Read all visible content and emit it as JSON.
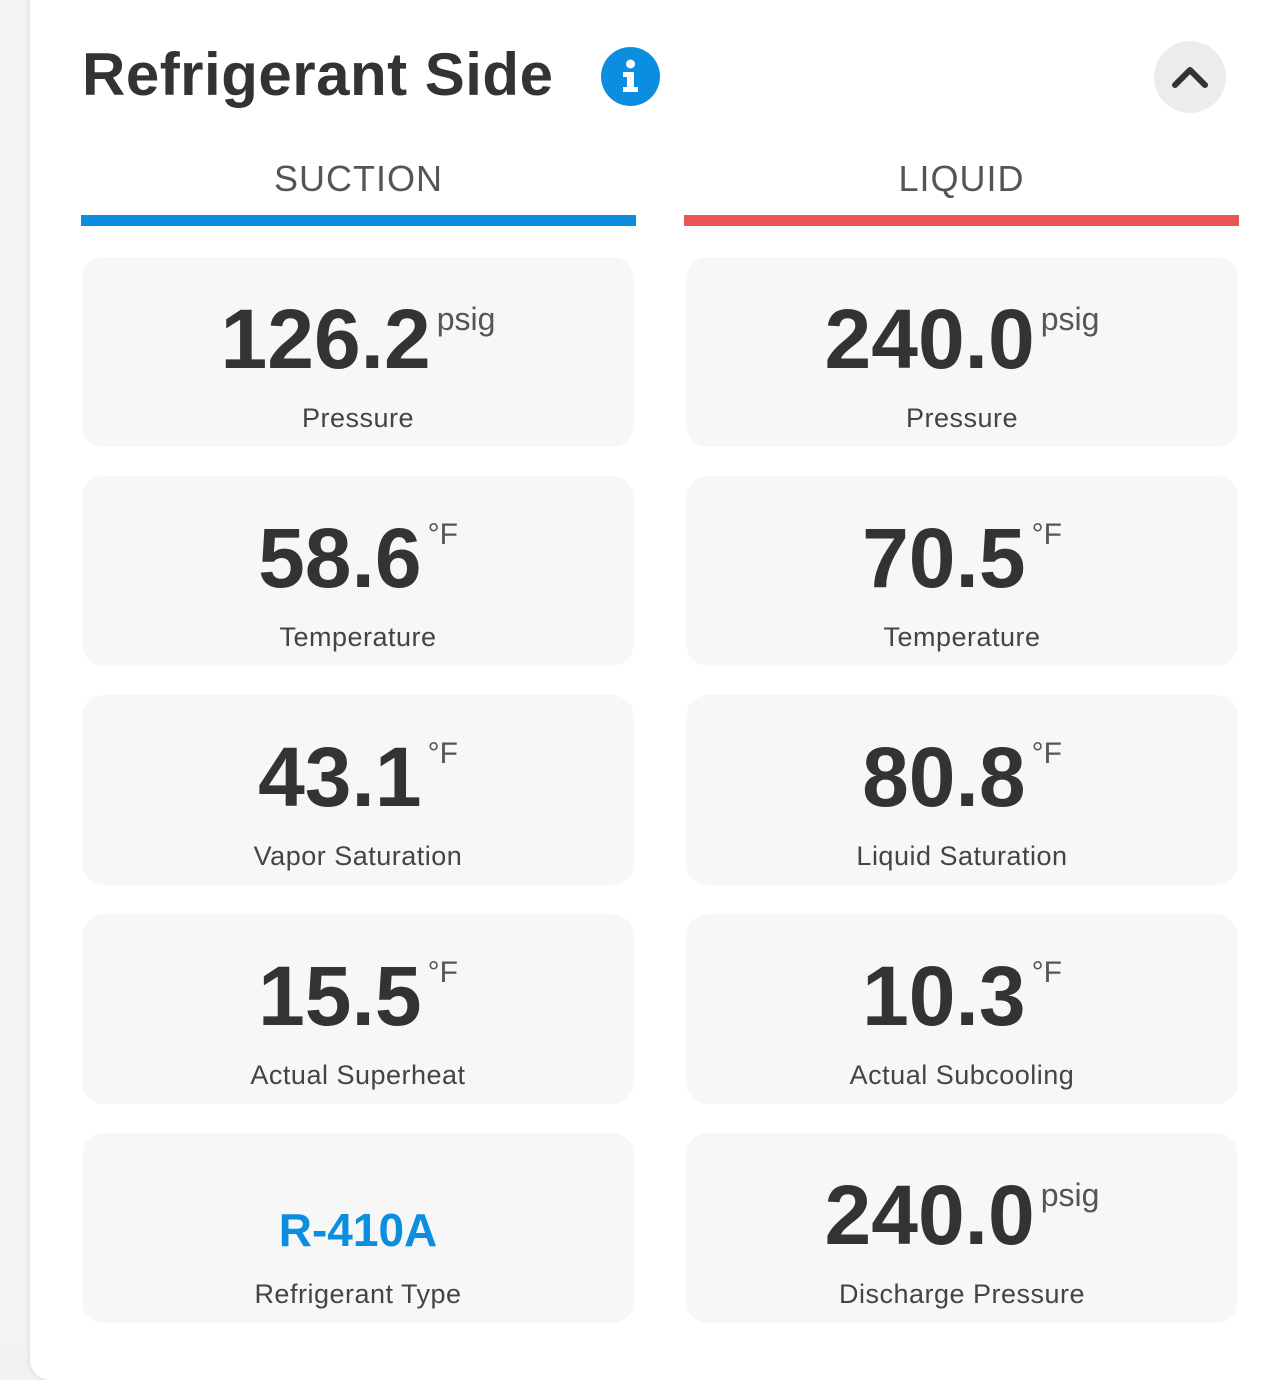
{
  "header": {
    "title": "Refrigerant Side"
  },
  "columns": {
    "suction": {
      "label": "SUCTION",
      "color": "#0b8ee0"
    },
    "liquid": {
      "label": "LIQUID",
      "color": "#e85656"
    }
  },
  "suction": [
    {
      "value": "126.2",
      "unit": "psig",
      "label": "Pressure"
    },
    {
      "value": "58.6",
      "unit": "°F",
      "label": "Temperature"
    },
    {
      "value": "43.1",
      "unit": "°F",
      "label": "Vapor Saturation"
    },
    {
      "value": "15.5",
      "unit": "°F",
      "label": "Actual Superheat"
    },
    {
      "value": "R-410A",
      "unit": "",
      "label": "Refrigerant Type"
    }
  ],
  "liquid": [
    {
      "value": "240.0",
      "unit": "psig",
      "label": "Pressure"
    },
    {
      "value": "70.5",
      "unit": "°F",
      "label": "Temperature"
    },
    {
      "value": "80.8",
      "unit": "°F",
      "label": "Liquid Saturation"
    },
    {
      "value": "10.3",
      "unit": "°F",
      "label": "Actual Subcooling"
    },
    {
      "value": "240.0",
      "unit": "psig",
      "label": "Discharge Pressure"
    }
  ],
  "colors": {
    "accent": "#0b8ee0",
    "liquid_accent": "#e85656",
    "text": "#333333"
  },
  "icons": {
    "info": "info-icon",
    "collapse": "chevron-up-icon"
  }
}
